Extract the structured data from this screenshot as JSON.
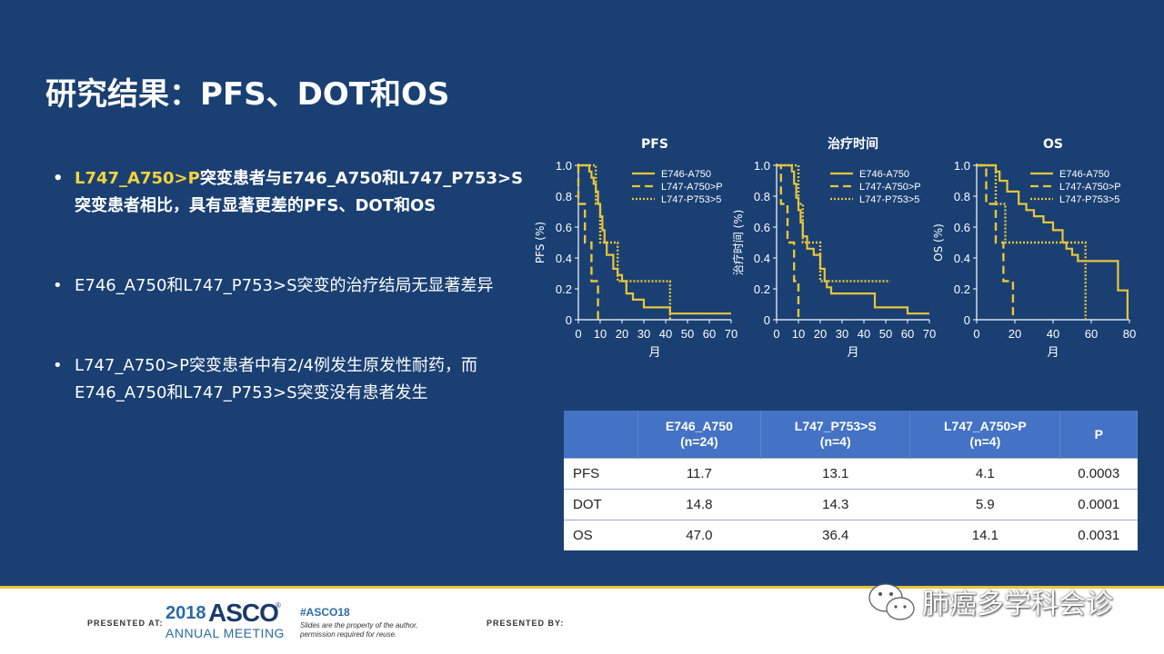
{
  "slide": {
    "title": "研究结果：PFS、DOT和OS",
    "bullets": [
      {
        "highlight": "L747_A750>P",
        "text": "突变患者与E746_A750和L747_P753>S突变患者相比，具有显著更差的PFS、DOT和OS"
      },
      {
        "text": "E746_A750和L747_P753>S突变的治疗结局无显著差异"
      },
      {
        "text": "L747_A750>P突变患者中有2/4例发生原发性耐药，而E746_A750和L747_P753>S突变没有患者发生"
      }
    ],
    "bullet_symbol": "•"
  },
  "colors": {
    "background": "#1a3f72",
    "accent": "#e8c53a",
    "table_header": "#4472c4"
  },
  "legend": [
    "E746-A750",
    "L747-A750>P",
    "L747-P753>5"
  ],
  "chart_data": [
    {
      "type": "line",
      "title": "PFS",
      "xlabel": "月",
      "ylabel": "PFS (%)",
      "xlim": [
        0,
        70
      ],
      "ylim": [
        0,
        1.0
      ],
      "xticks": [
        "0",
        "10",
        "20",
        "30",
        "40",
        "50",
        "60",
        "70"
      ],
      "yticks": [
        "0",
        "0.2",
        "0.4",
        "0.6",
        "0.8",
        "1.0"
      ],
      "series": [
        {
          "name": "E746-A750",
          "style": "solid",
          "points": [
            [
              0,
              1.0
            ],
            [
              5,
              1.0
            ],
            [
              5,
              0.96
            ],
            [
              6,
              0.96
            ],
            [
              6,
              0.92
            ],
            [
              7,
              0.92
            ],
            [
              7,
              0.88
            ],
            [
              8,
              0.88
            ],
            [
              8,
              0.83
            ],
            [
              9,
              0.83
            ],
            [
              9,
              0.75
            ],
            [
              10,
              0.75
            ],
            [
              10,
              0.67
            ],
            [
              11,
              0.67
            ],
            [
              11,
              0.58
            ],
            [
              12,
              0.58
            ],
            [
              12,
              0.5
            ],
            [
              13,
              0.5
            ],
            [
              13,
              0.42
            ],
            [
              16,
              0.42
            ],
            [
              16,
              0.33
            ],
            [
              18,
              0.33
            ],
            [
              18,
              0.29
            ],
            [
              20,
              0.29
            ],
            [
              20,
              0.25
            ],
            [
              22,
              0.25
            ],
            [
              22,
              0.17
            ],
            [
              25,
              0.17
            ],
            [
              25,
              0.13
            ],
            [
              30,
              0.13
            ],
            [
              30,
              0.08
            ],
            [
              42,
              0.08
            ],
            [
              42,
              0.04
            ],
            [
              70,
              0.04
            ]
          ]
        },
        {
          "name": "L747-A750>P",
          "style": "dashed",
          "points": [
            [
              0,
              1.0
            ],
            [
              0,
              0.75
            ],
            [
              3,
              0.75
            ],
            [
              3,
              0.5
            ],
            [
              6,
              0.5
            ],
            [
              6,
              0.25
            ],
            [
              9,
              0.25
            ],
            [
              9,
              0.0
            ]
          ]
        },
        {
          "name": "L747-P753>5",
          "style": "dotted",
          "points": [
            [
              0,
              1.0
            ],
            [
              8,
              1.0
            ],
            [
              8,
              0.75
            ],
            [
              10,
              0.75
            ],
            [
              10,
              0.5
            ],
            [
              18,
              0.5
            ],
            [
              18,
              0.25
            ],
            [
              42,
              0.25
            ],
            [
              42,
              0.0
            ]
          ]
        }
      ]
    },
    {
      "type": "line",
      "title": "治疗时间",
      "xlabel": "月",
      "ylabel": "治疗时间 (%)",
      "xlim": [
        0,
        70
      ],
      "ylim": [
        0,
        1.0
      ],
      "xticks": [
        "0",
        "10",
        "20",
        "30",
        "40",
        "50",
        "60",
        "70"
      ],
      "yticks": [
        "0",
        "0.2",
        "0.4",
        "0.6",
        "0.8",
        "1.0"
      ],
      "series": [
        {
          "name": "E746-A750",
          "style": "solid",
          "points": [
            [
              0,
              1.0
            ],
            [
              7,
              1.0
            ],
            [
              7,
              0.96
            ],
            [
              8,
              0.96
            ],
            [
              8,
              0.88
            ],
            [
              9,
              0.88
            ],
            [
              9,
              0.79
            ],
            [
              10,
              0.79
            ],
            [
              10,
              0.71
            ],
            [
              11,
              0.71
            ],
            [
              11,
              0.63
            ],
            [
              12,
              0.63
            ],
            [
              12,
              0.54
            ],
            [
              14,
              0.54
            ],
            [
              14,
              0.46
            ],
            [
              17,
              0.46
            ],
            [
              17,
              0.42
            ],
            [
              20,
              0.42
            ],
            [
              20,
              0.33
            ],
            [
              22,
              0.33
            ],
            [
              22,
              0.25
            ],
            [
              23,
              0.25
            ],
            [
              23,
              0.21
            ],
            [
              25,
              0.21
            ],
            [
              25,
              0.17
            ],
            [
              45,
              0.17
            ],
            [
              45,
              0.08
            ],
            [
              60,
              0.08
            ],
            [
              60,
              0.04
            ],
            [
              70,
              0.04
            ]
          ]
        },
        {
          "name": "L747-A750>P",
          "style": "dashed",
          "points": [
            [
              0,
              1.0
            ],
            [
              2,
              1.0
            ],
            [
              2,
              0.75
            ],
            [
              5,
              0.75
            ],
            [
              5,
              0.5
            ],
            [
              8,
              0.5
            ],
            [
              8,
              0.25
            ],
            [
              10,
              0.25
            ],
            [
              10,
              0.0
            ]
          ]
        },
        {
          "name": "L747-P753>5",
          "style": "dotted",
          "points": [
            [
              0,
              1.0
            ],
            [
              10,
              1.0
            ],
            [
              10,
              0.75
            ],
            [
              12,
              0.75
            ],
            [
              12,
              0.5
            ],
            [
              20,
              0.5
            ],
            [
              20,
              0.25
            ],
            [
              52,
              0.25
            ]
          ]
        }
      ]
    },
    {
      "type": "line",
      "title": "OS",
      "xlabel": "月",
      "ylabel": "OS (%)",
      "xlim": [
        0,
        80
      ],
      "ylim": [
        0,
        1.0
      ],
      "xticks": [
        "0",
        "20",
        "40",
        "60",
        "80"
      ],
      "yticks": [
        "0",
        "0.2",
        "0.4",
        "0.6",
        "0.8",
        "1.0"
      ],
      "series": [
        {
          "name": "E746-A750",
          "style": "solid",
          "points": [
            [
              0,
              1.0
            ],
            [
              10,
              1.0
            ],
            [
              10,
              0.96
            ],
            [
              12,
              0.96
            ],
            [
              12,
              0.9
            ],
            [
              16,
              0.9
            ],
            [
              16,
              0.83
            ],
            [
              22,
              0.83
            ],
            [
              22,
              0.75
            ],
            [
              26,
              0.75
            ],
            [
              26,
              0.71
            ],
            [
              30,
              0.71
            ],
            [
              30,
              0.67
            ],
            [
              35,
              0.67
            ],
            [
              35,
              0.63
            ],
            [
              40,
              0.63
            ],
            [
              40,
              0.58
            ],
            [
              45,
              0.58
            ],
            [
              45,
              0.5
            ],
            [
              47,
              0.5
            ],
            [
              47,
              0.46
            ],
            [
              50,
              0.46
            ],
            [
              50,
              0.42
            ],
            [
              53,
              0.42
            ],
            [
              53,
              0.38
            ],
            [
              74,
              0.38
            ],
            [
              74,
              0.19
            ],
            [
              79,
              0.19
            ],
            [
              79,
              0.0
            ]
          ]
        },
        {
          "name": "L747-A750>P",
          "style": "dashed",
          "points": [
            [
              0,
              1.0
            ],
            [
              5,
              1.0
            ],
            [
              5,
              0.75
            ],
            [
              10,
              0.75
            ],
            [
              10,
              0.5
            ],
            [
              14,
              0.5
            ],
            [
              14,
              0.25
            ],
            [
              19,
              0.25
            ],
            [
              19,
              0.0
            ]
          ]
        },
        {
          "name": "L747-P753>5",
          "style": "dotted",
          "points": [
            [
              0,
              1.0
            ],
            [
              10,
              1.0
            ],
            [
              10,
              0.75
            ],
            [
              15,
              0.75
            ],
            [
              15,
              0.5
            ],
            [
              57,
              0.5
            ],
            [
              57,
              0.0
            ]
          ]
        }
      ]
    }
  ],
  "table": {
    "headers": [
      {
        "line1": "",
        "line2": ""
      },
      {
        "line1": "E746_A750",
        "line2": "(n=24)"
      },
      {
        "line1": "L747_P753>S",
        "line2": "(n=4)"
      },
      {
        "line1": "L747_A750>P",
        "line2": "(n=4)"
      },
      {
        "line1": "P",
        "line2": ""
      }
    ],
    "rows": [
      [
        "PFS",
        "11.7",
        "13.1",
        "4.1",
        "0.0003"
      ],
      [
        "DOT",
        "14.8",
        "14.3",
        "5.9",
        "0.0001"
      ],
      [
        "OS",
        "47.0",
        "36.4",
        "14.1",
        "0.0031"
      ]
    ]
  },
  "footer": {
    "presented_at": "PRESENTED AT:",
    "year": "2018",
    "asco": "ASCO",
    "reg": "®",
    "meeting": "ANNUAL MEETING",
    "hashtag": "#ASCO18",
    "note_line1": "Slides are the property of the author,",
    "note_line2": "permission required for reuse.",
    "presented_by": "PRESENTED BY:"
  },
  "watermark": {
    "text": "肺癌多学科会诊",
    "icon": "wechat-icon"
  }
}
